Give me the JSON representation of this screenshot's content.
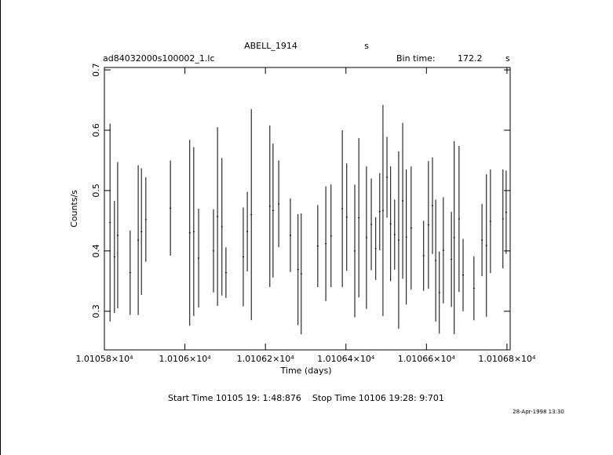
{
  "chart_data": {
    "type": "errorbar",
    "title": "ABELL_1914",
    "title_unit": "s",
    "file_name": "ad84032000s100002_1.lc",
    "bin_time_label": "Bin time:",
    "bin_time": "172.2",
    "bin_time_unit": "s",
    "x_label": "Time (days)",
    "y_label": "Counts/s",
    "time_range": "Start Time 10105 19: 1:48:876    Stop Time 10106 19:28: 9:701",
    "date_stamp": "28-Apr-1998 13:30",
    "color": "#000000",
    "xlim": [
      10105.8,
      10106.808
    ],
    "ylim": [
      0.236,
      0.704
    ],
    "xticks": [
      {
        "value": 10105.8,
        "label": "1.01058×10⁴"
      },
      {
        "value": 10106.0,
        "label": "1.0106×10⁴"
      },
      {
        "value": 10106.2,
        "label": "1.01062×10⁴"
      },
      {
        "value": 10106.4,
        "label": "1.01064×10⁴"
      },
      {
        "value": 10106.6,
        "label": "1.01066×10⁴"
      },
      {
        "value": 10106.8,
        "label": "1.01068×10⁴"
      }
    ],
    "yticks": [
      0.3,
      0.4,
      0.5,
      0.6,
      0.7
    ],
    "x": [
      10105.814,
      10105.825,
      10105.833,
      10105.864,
      10105.884,
      10105.892,
      10105.903,
      10105.964,
      10106.012,
      10106.022,
      10106.034,
      10106.071,
      10106.081,
      10106.092,
      10106.102,
      10106.145,
      10106.155,
      10106.165,
      10106.211,
      10106.219,
      10106.233,
      10106.262,
      10106.281,
      10106.289,
      10106.33,
      10106.35,
      10106.363,
      10106.391,
      10106.402,
      10106.422,
      10106.432,
      10106.451,
      10106.463,
      10106.474,
      10106.484,
      10106.492,
      10106.502,
      10106.511,
      10106.521,
      10106.531,
      10106.541,
      10106.55,
      10106.562,
      10106.593,
      10106.605,
      10106.615,
      10106.623,
      10106.632,
      10106.642,
      10106.662,
      10106.669,
      10106.681,
      10106.691,
      10106.718,
      10106.738,
      10106.749,
      10106.759,
      10106.79,
      10106.798
    ],
    "values": [
      0.447,
      0.39,
      0.426,
      0.364,
      0.418,
      0.432,
      0.452,
      0.471,
      0.43,
      0.432,
      0.388,
      0.4,
      0.457,
      0.44,
      0.364,
      0.39,
      0.432,
      0.46,
      0.474,
      0.467,
      0.478,
      0.426,
      0.369,
      0.362,
      0.408,
      0.412,
      0.425,
      0.47,
      0.456,
      0.4,
      0.455,
      0.422,
      0.444,
      0.404,
      0.465,
      0.467,
      0.522,
      0.445,
      0.427,
      0.418,
      0.483,
      0.423,
      0.438,
      0.392,
      0.443,
      0.475,
      0.384,
      0.331,
      0.401,
      0.386,
      0.422,
      0.453,
      0.36,
      0.338,
      0.418,
      0.409,
      0.449,
      0.453,
      0.464
    ],
    "errors": [
      0.164,
      0.093,
      0.121,
      0.07,
      0.124,
      0.105,
      0.07,
      0.079,
      0.154,
      0.14,
      0.082,
      0.069,
      0.148,
      0.114,
      0.042,
      0.082,
      0.066,
      0.175,
      0.134,
      0.111,
      0.072,
      0.061,
      0.092,
      0.1,
      0.068,
      0.095,
      0.085,
      0.13,
      0.089,
      0.11,
      0.132,
      0.118,
      0.076,
      0.052,
      0.064,
      0.175,
      0.067,
      0.095,
      0.058,
      0.147,
      0.129,
      0.112,
      0.102,
      0.058,
      0.106,
      0.08,
      0.101,
      0.068,
      0.088,
      0.079,
      0.16,
      0.121,
      0.06,
      0.053,
      0.06,
      0.118,
      0.086,
      0.082,
      0.069
    ]
  }
}
